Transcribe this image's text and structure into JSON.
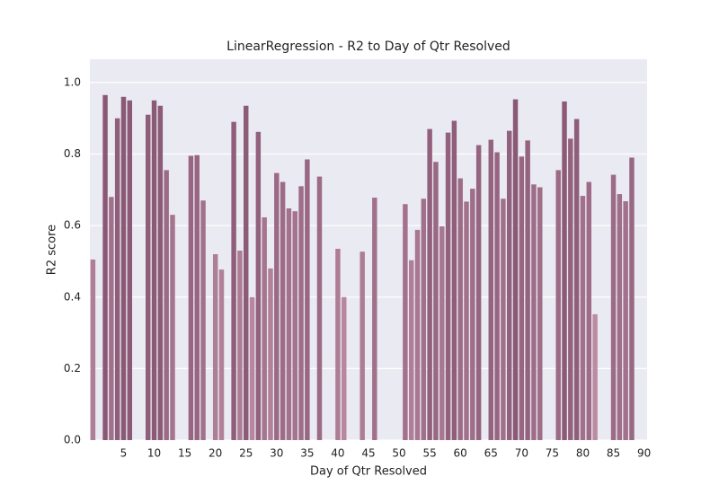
{
  "chart_data": {
    "type": "bar",
    "title": "LinearRegression - R2 to Day of Qtr Resolved",
    "x_label": "Day of Qtr Resolved",
    "y_label": "R2 score",
    "x": [
      0,
      1,
      2,
      3,
      4,
      5,
      6,
      7,
      8,
      9,
      10,
      11,
      12,
      13,
      14,
      15,
      16,
      17,
      18,
      19,
      20,
      21,
      22,
      23,
      24,
      25,
      26,
      27,
      28,
      29,
      30,
      31,
      32,
      33,
      34,
      35,
      36,
      37,
      38,
      39,
      40,
      41,
      42,
      43,
      44,
      45,
      46,
      47,
      48,
      49,
      50,
      51,
      52,
      53,
      54,
      55,
      56,
      57,
      58,
      59,
      60,
      61,
      62,
      63,
      64,
      65,
      66,
      67,
      68,
      69,
      70,
      71,
      72,
      73,
      74,
      75,
      76,
      77,
      78,
      79,
      80,
      81,
      82,
      83,
      84,
      85,
      86,
      87,
      88,
      89,
      90
    ],
    "values": [
      0.505,
      null,
      0.965,
      0.68,
      0.9,
      0.96,
      0.95,
      null,
      null,
      0.91,
      0.95,
      0.935,
      0.755,
      0.63,
      null,
      null,
      0.795,
      0.797,
      0.67,
      null,
      0.52,
      0.477,
      null,
      0.89,
      0.53,
      0.935,
      0.4,
      0.862,
      0.623,
      0.48,
      0.747,
      0.722,
      0.648,
      0.64,
      0.71,
      0.785,
      null,
      0.737,
      null,
      null,
      0.535,
      0.4,
      null,
      null,
      0.527,
      null,
      0.678,
      null,
      null,
      null,
      null,
      0.66,
      0.503,
      0.588,
      0.675,
      0.87,
      0.778,
      0.598,
      0.86,
      0.893,
      0.732,
      0.667,
      0.703,
      0.825,
      null,
      0.84,
      0.805,
      0.675,
      0.865,
      0.953,
      0.793,
      0.838,
      0.715,
      0.707,
      null,
      null,
      0.755,
      0.947,
      0.843,
      0.898,
      0.683,
      0.722,
      0.352,
      null,
      null,
      0.742,
      0.688,
      0.668,
      0.79,
      null,
      null
    ],
    "palette": [
      "#d8a8bc",
      "#82506e"
    ],
    "xlim": [
      -0.5,
      90.5
    ],
    "xticks": [
      5,
      10,
      15,
      20,
      25,
      30,
      35,
      40,
      45,
      50,
      55,
      60,
      65,
      70,
      75,
      80,
      85,
      90
    ],
    "ylim": [
      0,
      1.065
    ],
    "yticks": [
      {
        "value": 0,
        "label": "0.0"
      },
      0.2,
      0.4,
      0.6,
      0.8,
      {
        "value": 1,
        "label": "1.0"
      }
    ],
    "grid": true,
    "background": "#eaeaf2"
  }
}
